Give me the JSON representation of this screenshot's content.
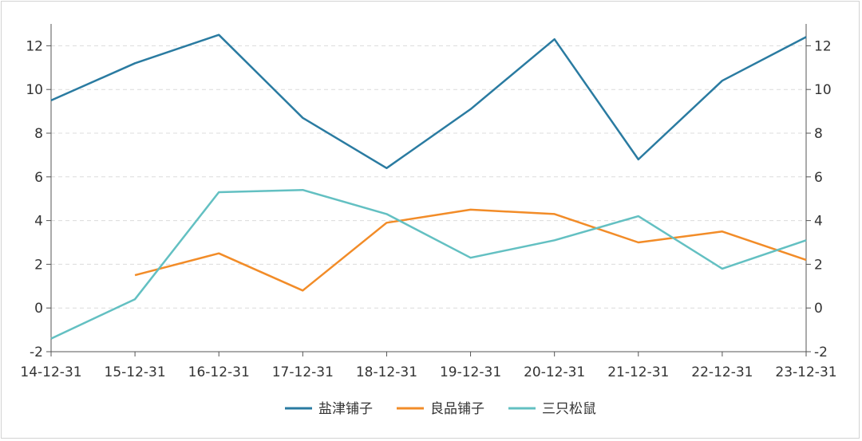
{
  "chart_data": {
    "type": "line",
    "title": "",
    "xlabel": "",
    "ylabel": "",
    "categories": [
      "14-12-31",
      "15-12-31",
      "16-12-31",
      "17-12-31",
      "18-12-31",
      "19-12-31",
      "20-12-31",
      "21-12-31",
      "22-12-31",
      "23-12-31"
    ],
    "ylim": [
      -2,
      13
    ],
    "yticks": [
      -2,
      0,
      2,
      4,
      6,
      8,
      10,
      12
    ],
    "y_tick_labels": [
      "-2",
      "0",
      "2",
      "4",
      "6",
      "8",
      "10",
      "12"
    ],
    "right_axis_mirrors_left": true,
    "grid": "horizontal-dashed",
    "legend_position": "bottom-center",
    "series": [
      {
        "name": "盐津铺子",
        "color": "#2a7ba1",
        "values": [
          9.5,
          11.2,
          12.5,
          8.7,
          6.4,
          9.1,
          12.3,
          6.8,
          10.4,
          12.4
        ]
      },
      {
        "name": "良品铺子",
        "color": "#f28c28",
        "values": [
          null,
          1.5,
          2.5,
          0.8,
          3.9,
          4.5,
          4.3,
          3.0,
          3.5,
          2.2
        ]
      },
      {
        "name": "三只松鼠",
        "color": "#63c0c2",
        "values": [
          -1.4,
          0.4,
          5.3,
          5.4,
          4.3,
          2.3,
          3.1,
          4.2,
          1.8,
          3.1
        ]
      }
    ]
  }
}
